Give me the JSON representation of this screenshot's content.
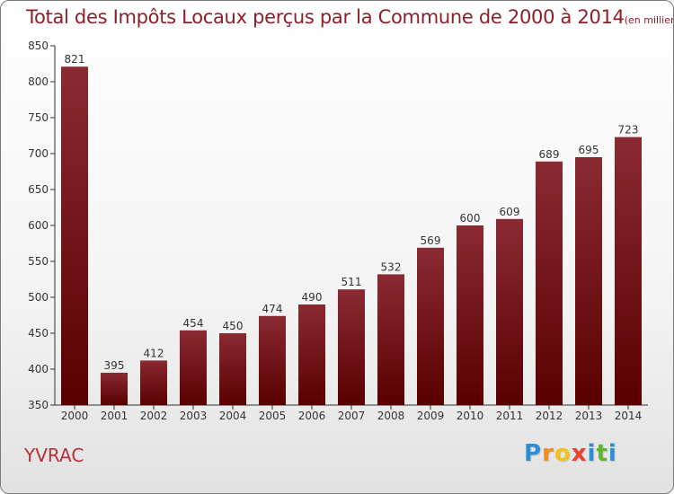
{
  "chart_data": {
    "type": "bar",
    "title": "Total des Impôts Locaux perçus par la Commune de 2000 à 2014",
    "unit": "(en milliers d'€)",
    "categories": [
      "2000",
      "2001",
      "2002",
      "2003",
      "2004",
      "2005",
      "2006",
      "2007",
      "2008",
      "2009",
      "2010",
      "2011",
      "2012",
      "2013",
      "2014"
    ],
    "values": [
      821,
      395,
      412,
      454,
      450,
      474,
      490,
      511,
      532,
      569,
      600,
      609,
      689,
      695,
      723
    ],
    "ylim": [
      350,
      850
    ],
    "yticks": [
      350,
      400,
      450,
      500,
      550,
      600,
      650,
      700,
      750,
      800,
      850
    ],
    "xlabel": "",
    "ylabel": "",
    "grid": false,
    "bar_color": "#7a1a22"
  },
  "commune": "YVRAC",
  "brand": {
    "letters": [
      "P",
      "r",
      "o",
      "x",
      "i",
      "t",
      "i"
    ],
    "colors": [
      "#2b8fd6",
      "#f28c1b",
      "#f2c31b",
      "#e8432d",
      "#2b8fd6",
      "#5db531",
      "#2b8fd6"
    ]
  }
}
